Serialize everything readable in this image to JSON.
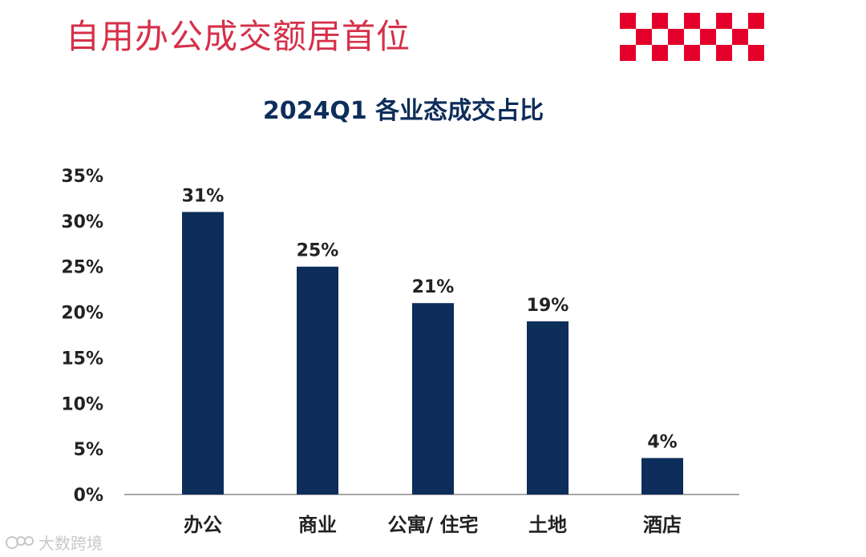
{
  "page": {
    "headline": "自用办公成交额居首位",
    "headline_color": "#d6304a",
    "brand_color": "#e4002b",
    "bar_color": "#0d2d5a",
    "watermark": "大数跨境"
  },
  "chart_data": {
    "type": "bar",
    "title": "2024Q1 各业态成交占比",
    "categories": [
      "办公",
      "商业",
      "公寓/ 住宅",
      "土地",
      "酒店"
    ],
    "values": [
      31,
      25,
      21,
      19,
      4
    ],
    "data_labels": [
      "31%",
      "25%",
      "21%",
      "19%",
      "4%"
    ],
    "ylim": [
      0,
      35
    ],
    "yticks": [
      "0%",
      "5%",
      "10%",
      "15%",
      "20%",
      "25%",
      "30%",
      "35%"
    ],
    "xlabel": "",
    "ylabel": "",
    "grid": false,
    "legend": "none"
  }
}
